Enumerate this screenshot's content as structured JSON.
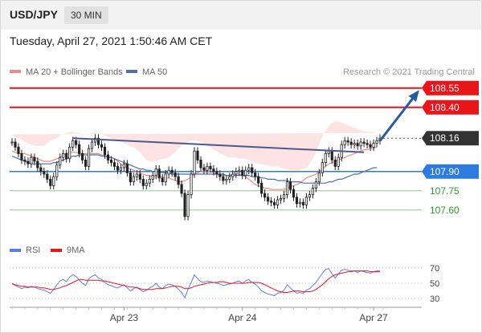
{
  "header": {
    "symbol": "USD/JPY",
    "timeframe": "30 MIN"
  },
  "datetime": "Tuesday, April 27, 2021 1:50:46 AM CET",
  "legend": {
    "ma20_label": "MA 20 + Bollinger Bands",
    "ma50_label": "MA 50",
    "copyright": "Research © 2021 Trading Central"
  },
  "colors": {
    "resistance": "#e8151b",
    "support_blue": "#2d7be0",
    "support_green": "#2e9a2e",
    "ma20": "#f08a8a",
    "ma50": "#4f6fae",
    "bollinger_fill": "#fde3e3",
    "candle": "#222222",
    "trendline": "#4a5a8e",
    "arrow": "#2b5a9e",
    "rsi": "#5b7fe8",
    "ma9": "#e8151b"
  },
  "chart_data": [
    {
      "type": "line",
      "name": "price",
      "ylim": [
        107.43,
        108.63
      ],
      "levels": [
        {
          "value": 108.55,
          "label": "108.55",
          "kind": "resistance"
        },
        {
          "value": 108.4,
          "label": "108.40",
          "kind": "resistance"
        },
        {
          "value": 108.16,
          "label": "108.16",
          "kind": "current"
        },
        {
          "value": 107.9,
          "label": "107.90",
          "kind": "support"
        },
        {
          "value": 107.75,
          "label": "107.75",
          "kind": "support-green"
        },
        {
          "value": 107.6,
          "label": "107.60",
          "kind": "support-green"
        }
      ],
      "x_ticks": [
        "Apr 23",
        "Apr 24",
        "Apr 27"
      ],
      "x_tick_index": [
        35,
        72,
        113
      ],
      "closes": [
        108.13,
        108.09,
        108.04,
        107.99,
        107.98,
        107.96,
        108.01,
        107.98,
        107.93,
        107.9,
        107.88,
        107.84,
        107.79,
        107.86,
        107.95,
        108.01,
        108.04,
        108.0,
        108.09,
        108.14,
        108.11,
        108.04,
        107.99,
        107.94,
        108.08,
        108.13,
        108.16,
        108.11,
        108.09,
        108.03,
        107.99,
        107.97,
        107.94,
        107.91,
        107.93,
        107.96,
        107.89,
        107.82,
        107.86,
        107.88,
        107.84,
        107.79,
        107.81,
        107.84,
        107.87,
        107.92,
        107.85,
        107.82,
        107.88,
        107.91,
        107.89,
        107.86,
        107.8,
        107.73,
        107.55,
        107.72,
        107.88,
        108.06,
        107.99,
        107.93,
        107.91,
        107.94,
        107.92,
        107.9,
        107.88,
        107.86,
        107.83,
        107.84,
        107.86,
        107.88,
        107.9,
        107.91,
        107.87,
        107.91,
        107.93,
        107.89,
        107.86,
        107.81,
        107.73,
        107.7,
        107.67,
        107.66,
        107.64,
        107.68,
        107.69,
        107.72,
        107.82,
        107.76,
        107.7,
        107.65,
        107.66,
        107.64,
        107.7,
        107.72,
        107.77,
        107.82,
        107.89,
        107.97,
        108.04,
        108.06,
        107.99,
        107.94,
        108.01,
        108.11,
        108.14,
        108.13,
        108.11,
        108.12,
        108.1,
        108.13,
        108.12,
        108.11,
        108.09,
        108.12,
        108.14,
        108.16
      ],
      "ma20": [
        108.06,
        108.05,
        108.04,
        108.04,
        108.04,
        108.03,
        108.02,
        108.01,
        108.0,
        107.99,
        107.98,
        107.98,
        107.98,
        107.99,
        108.0,
        108.01,
        108.03,
        108.04,
        108.05,
        108.05,
        108.05,
        108.04,
        108.04,
        108.04,
        108.04,
        108.04,
        108.04,
        108.04,
        108.03,
        108.02,
        108.02,
        108.01,
        108.0,
        107.98,
        107.96,
        107.94,
        107.93,
        107.92,
        107.91,
        107.9,
        107.89,
        107.88,
        107.87,
        107.87,
        107.86,
        107.86,
        107.86,
        107.86,
        107.85,
        107.85,
        107.84,
        107.83,
        107.82,
        107.82,
        107.83,
        107.84,
        107.86,
        107.88,
        107.89,
        107.9,
        107.9,
        107.91,
        107.9,
        107.89,
        107.88,
        107.87,
        107.87,
        107.87,
        107.87,
        107.88,
        107.88,
        107.88,
        107.87,
        107.86,
        107.84,
        107.82,
        107.8,
        107.79,
        107.78,
        107.77,
        107.77,
        107.76,
        107.76,
        107.76,
        107.76,
        107.76,
        107.77,
        107.78,
        107.79,
        107.8,
        107.81,
        107.83,
        107.85,
        107.86,
        107.87,
        107.88,
        107.9,
        107.92,
        107.94,
        107.96,
        107.97,
        107.98,
        107.99,
        108.0,
        108.01,
        108.02,
        108.03,
        108.04,
        108.05,
        108.06,
        108.07,
        108.07,
        108.08,
        108.08,
        108.09
      ],
      "bb_upper": [
        108.19,
        108.17,
        108.16,
        108.15,
        108.13,
        108.12,
        108.11,
        108.1,
        108.1,
        108.1,
        108.1,
        108.12,
        108.14,
        108.15,
        108.16,
        108.18,
        108.19,
        108.2,
        108.21,
        108.21,
        108.2,
        108.2,
        108.19,
        108.19,
        108.19,
        108.2,
        108.2,
        108.2,
        108.19,
        108.18,
        108.17,
        108.16,
        108.15,
        108.14,
        108.13,
        108.12,
        108.11,
        108.1,
        108.09,
        108.07,
        108.05,
        108.02,
        107.99,
        107.98,
        107.98,
        107.98,
        107.99,
        108.0,
        108.0,
        108.01,
        108.03,
        108.05,
        108.08,
        108.1,
        108.12,
        108.13,
        108.14,
        108.14,
        108.14,
        108.13,
        108.12,
        108.1,
        108.09,
        108.07,
        108.06,
        108.04,
        108.03,
        108.02,
        108.01,
        108.01,
        108.01,
        108.0,
        108.0,
        108.0,
        107.99,
        107.98,
        107.97,
        107.96,
        107.96,
        107.95,
        107.95,
        107.94,
        107.94,
        107.94,
        107.93,
        107.92,
        107.92,
        107.91,
        107.91,
        107.91,
        107.91,
        107.92,
        107.93,
        107.96,
        108.0,
        108.05,
        108.12,
        108.17,
        108.22,
        108.26,
        108.28,
        108.29,
        108.29,
        108.28,
        108.27,
        108.26,
        108.25,
        108.24,
        108.23,
        108.22,
        108.22,
        108.21,
        108.21,
        108.21,
        108.2
      ],
      "bb_lower": [
        107.93,
        107.92,
        107.91,
        107.9,
        107.89,
        107.88,
        107.87,
        107.86,
        107.84,
        107.83,
        107.82,
        107.8,
        107.79,
        107.8,
        107.82,
        107.84,
        107.86,
        107.88,
        107.9,
        107.92,
        107.92,
        107.92,
        107.92,
        107.92,
        107.92,
        107.91,
        107.9,
        107.88,
        107.86,
        107.84,
        107.82,
        107.79,
        107.76,
        107.73,
        107.7,
        107.68,
        107.68,
        107.68,
        107.69,
        107.71,
        107.72,
        107.73,
        107.74,
        107.74,
        107.74,
        107.74,
        107.73,
        107.7,
        107.66,
        107.61,
        107.57,
        107.54,
        107.53,
        107.53,
        107.54,
        107.56,
        107.59,
        107.62,
        107.64,
        107.66,
        107.68,
        107.7,
        107.71,
        107.72,
        107.72,
        107.73,
        107.74,
        107.74,
        107.74,
        107.74,
        107.74,
        107.74,
        107.73,
        107.71,
        107.68,
        107.65,
        107.62,
        107.6,
        107.59,
        107.58,
        107.57,
        107.57,
        107.57,
        107.57,
        107.57,
        107.58,
        107.59,
        107.6,
        107.61,
        107.6,
        107.58,
        107.56,
        107.54,
        107.53,
        107.52,
        107.53,
        107.55,
        107.6,
        107.67,
        107.74,
        107.81,
        107.87,
        107.91,
        107.94,
        107.97,
        107.99,
        108.01,
        108.02,
        108.03,
        108.04,
        108.05,
        108.05,
        108.06,
        108.06,
        108.06
      ],
      "ma50": [
        108.02,
        108.01,
        108.0,
        107.99,
        107.98,
        107.97,
        107.96,
        107.96,
        107.96,
        107.96,
        107.96,
        107.96,
        107.96,
        107.97,
        107.97,
        107.98,
        107.99,
        108.0,
        108.01,
        108.02,
        108.02,
        108.03,
        108.03,
        108.03,
        108.03,
        108.03,
        108.03,
        108.03,
        108.02,
        108.02,
        108.01,
        108.01,
        108.0,
        107.99,
        107.98,
        107.97,
        107.96,
        107.95,
        107.94,
        107.93,
        107.92,
        107.92,
        107.91,
        107.91,
        107.9,
        107.9,
        107.9,
        107.89,
        107.89,
        107.89,
        107.88,
        107.88,
        107.88,
        107.88,
        107.88,
        107.88,
        107.88,
        107.88,
        107.88,
        107.88,
        107.88,
        107.88,
        107.88,
        107.88,
        107.88,
        107.88,
        107.88,
        107.87,
        107.87,
        107.87,
        107.87,
        107.87,
        107.87,
        107.87,
        107.87,
        107.86,
        107.86,
        107.86,
        107.85,
        107.85,
        107.84,
        107.84,
        107.84,
        107.83,
        107.83,
        107.83,
        107.83,
        107.82,
        107.82,
        107.82,
        107.82,
        107.81,
        107.81,
        107.81,
        107.81,
        107.81,
        107.81,
        107.81,
        107.81,
        107.82,
        107.82,
        107.83,
        107.84,
        107.84,
        107.85,
        107.86,
        107.87,
        107.88,
        107.88,
        107.89,
        107.9,
        107.91,
        107.92,
        107.93,
        107.93
      ]
    },
    {
      "type": "line",
      "name": "rsi-panel",
      "legend": [
        "RSI",
        "9MA"
      ],
      "ylim": [
        25,
        75
      ],
      "y_ticks": [
        70,
        50,
        30
      ],
      "rsi": [
        50,
        47,
        45,
        43,
        45,
        44,
        46,
        45,
        43,
        42,
        41,
        39,
        37,
        42,
        48,
        53,
        55,
        52,
        58,
        61,
        59,
        54,
        50,
        47,
        56,
        59,
        61,
        57,
        55,
        51,
        48,
        47,
        45,
        44,
        46,
        48,
        44,
        40,
        43,
        45,
        42,
        39,
        41,
        44,
        46,
        50,
        45,
        43,
        47,
        49,
        48,
        46,
        42,
        38,
        31,
        42,
        51,
        61,
        56,
        52,
        51,
        53,
        52,
        51,
        50,
        49,
        47,
        48,
        49,
        50,
        52,
        53,
        50,
        53,
        55,
        51,
        49,
        45,
        40,
        38,
        36,
        35,
        34,
        37,
        38,
        41,
        48,
        44,
        40,
        37,
        38,
        37,
        41,
        43,
        47,
        51,
        57,
        63,
        68,
        69,
        62,
        57,
        62,
        67,
        68,
        67,
        66,
        66,
        64,
        66,
        65,
        64,
        63,
        65,
        66,
        66
      ],
      "ma9": [
        49,
        48,
        47,
        46,
        46,
        45,
        45,
        45,
        45,
        44,
        44,
        43,
        42,
        42,
        43,
        44,
        46,
        47,
        49,
        51,
        53,
        55,
        55,
        54,
        54,
        54,
        54,
        54,
        53,
        53,
        52,
        51,
        50,
        49,
        48,
        47,
        46,
        45,
        45,
        44,
        43,
        42,
        42,
        42,
        42,
        43,
        43,
        43,
        44,
        45,
        46,
        46,
        46,
        45,
        43,
        43,
        44,
        46,
        47,
        48,
        49,
        50,
        51,
        51,
        51,
        52,
        52,
        51,
        50,
        50,
        50,
        50,
        50,
        50,
        51,
        51,
        51,
        51,
        50,
        48,
        46,
        44,
        42,
        40,
        39,
        38,
        38,
        39,
        40,
        40,
        40,
        39,
        39,
        39,
        40,
        42,
        45,
        48,
        52,
        56,
        59,
        61,
        62,
        63,
        64,
        65,
        65,
        66,
        66,
        66,
        66,
        66,
        65,
        65,
        65,
        65
      ]
    }
  ]
}
